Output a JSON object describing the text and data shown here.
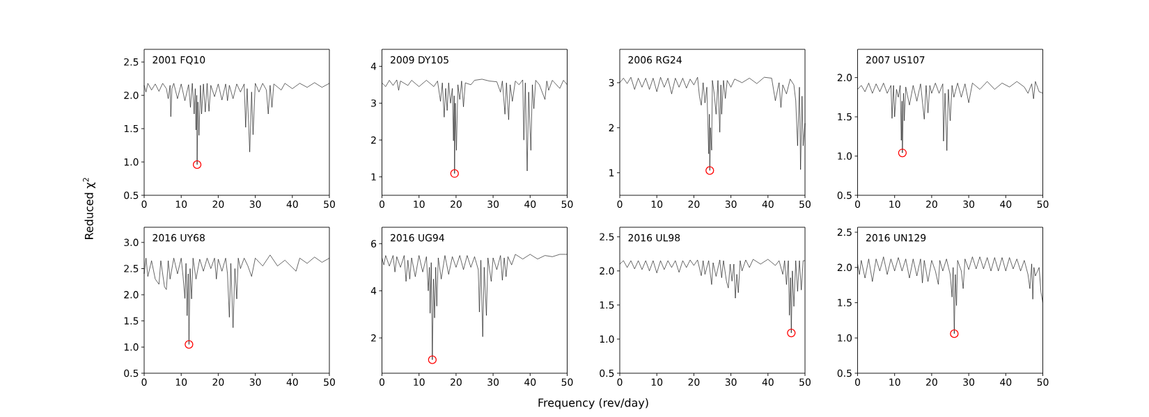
{
  "chart_data": [
    {
      "type": "line",
      "title": "2001 FQ10",
      "ylabel": "Reduced χ$^{2}$",
      "xlim": [
        0,
        50
      ],
      "xticks": [
        0,
        10,
        20,
        30,
        40,
        50
      ],
      "ylim": [
        0.5,
        2.69
      ],
      "yticks": [
        {
          "value": 0.5,
          "label": "0.5"
        },
        {
          "value": 1,
          "label": "1.0"
        },
        {
          "value": 1.5,
          "label": "1.5"
        },
        {
          "value": 2,
          "label": "2.0"
        },
        {
          "value": 2.5,
          "label": "2.5"
        }
      ],
      "series": [
        {
          "type": "line",
          "color": "#000000",
          "x": [
            0,
            0.5,
            1,
            2,
            3,
            4,
            5,
            6,
            6.5,
            7,
            7.2,
            7.5,
            8,
            9,
            10,
            11,
            12,
            12.5,
            13,
            13.5,
            13.8,
            14,
            14.2,
            14.3,
            14.5,
            14.8,
            15.2,
            15.5,
            16,
            16.5,
            17,
            17.5,
            18,
            19,
            20,
            21,
            22,
            22.5,
            23,
            24,
            25,
            26,
            27,
            27.4,
            27.8,
            28.5,
            29,
            29.4,
            30,
            31,
            32,
            33,
            33.5,
            34,
            34.5,
            35,
            37,
            38,
            40,
            42,
            44,
            46,
            48,
            50
          ],
          "values": [
            2.15,
            2.05,
            2.18,
            2.08,
            2.17,
            2.06,
            2.18,
            2.1,
            1.95,
            2.15,
            1.68,
            2.1,
            2.18,
            1.95,
            2.17,
            1.92,
            2.16,
            1.82,
            2.18,
            1.72,
            2.1,
            1.48,
            2.0,
            0.96,
            1.9,
            1.4,
            2.15,
            1.72,
            2.17,
            1.75,
            2.18,
            1.76,
            2.15,
            1.98,
            2.17,
            1.93,
            2.17,
            1.92,
            2.15,
            1.95,
            2.17,
            2.05,
            2.17,
            1.52,
            2.1,
            1.15,
            2.05,
            1.41,
            2.18,
            2.05,
            2.18,
            2.08,
            1.72,
            2.15,
            1.82,
            2.17,
            2.08,
            2.18,
            2.1,
            2.18,
            2.12,
            2.19,
            2.12,
            2.18
          ]
        },
        {
          "type": "scatter",
          "color": "#ff0000",
          "marker": "circle",
          "x": [
            14.3
          ],
          "values": [
            0.96
          ]
        }
      ]
    },
    {
      "type": "line",
      "title": "2009 DY105",
      "xlim": [
        0,
        50
      ],
      "xticks": [
        0,
        10,
        20,
        30,
        40,
        50
      ],
      "ylim": [
        0.5,
        4.46
      ],
      "yticks": [
        1,
        2,
        3,
        4
      ],
      "series": [
        {
          "type": "line",
          "color": "#000000",
          "x": [
            0,
            1,
            2,
            3,
            4,
            4.5,
            5,
            7,
            8,
            10,
            12,
            14,
            15,
            15.8,
            16.3,
            16.8,
            17.2,
            17.6,
            18,
            18.5,
            19,
            19.3,
            19.5,
            19.6,
            19.8,
            20.1,
            20.5,
            21,
            21.5,
            22,
            22.5,
            24,
            25,
            27,
            29,
            31,
            32,
            32.5,
            33.2,
            33.6,
            34.2,
            34.6,
            35.2,
            36,
            37,
            38,
            38.3,
            38.7,
            39.2,
            39.6,
            40.2,
            40.6,
            41,
            41.5,
            42.5,
            44,
            44.5,
            45,
            46,
            48,
            49,
            50
          ],
          "values": [
            3.55,
            3.45,
            3.62,
            3.48,
            3.63,
            3.35,
            3.6,
            3.48,
            3.62,
            3.45,
            3.62,
            3.45,
            3.6,
            3.05,
            3.55,
            2.62,
            3.4,
            2.8,
            3.55,
            3.0,
            3.4,
            1.98,
            3.2,
            1.09,
            3.0,
            1.72,
            3.5,
            3.1,
            3.6,
            2.9,
            3.55,
            3.5,
            3.62,
            3.65,
            3.6,
            3.58,
            3.3,
            3.6,
            2.7,
            3.55,
            2.55,
            3.5,
            3.05,
            3.6,
            3.5,
            3.63,
            2.0,
            3.55,
            1.16,
            3.3,
            1.72,
            3.5,
            2.85,
            3.62,
            3.5,
            3.1,
            3.6,
            3.35,
            3.62,
            3.4,
            3.62,
            3.5
          ]
        },
        {
          "type": "scatter",
          "color": "#ff0000",
          "marker": "circle",
          "x": [
            19.6
          ],
          "values": [
            1.09
          ]
        }
      ]
    },
    {
      "type": "line",
      "title": "2006 RG24",
      "xlim": [
        0,
        50
      ],
      "xticks": [
        0,
        10,
        20,
        30,
        40,
        50
      ],
      "ylim": [
        0.5,
        3.74
      ],
      "yticks": [
        1,
        2,
        3
      ],
      "series": [
        {
          "type": "line",
          "color": "#000000",
          "x": [
            0,
            1,
            2,
            3,
            4,
            5,
            6,
            7,
            8,
            9,
            10,
            11,
            12,
            13,
            14,
            15,
            16,
            17,
            18,
            19,
            20,
            21,
            21.5,
            22,
            22.5,
            23,
            23.5,
            24,
            24.2,
            24.3,
            24.5,
            24.8,
            25,
            25.5,
            26,
            26.5,
            27,
            27.3,
            27.5,
            28,
            28.5,
            29,
            30,
            31,
            33,
            35,
            37,
            39,
            41,
            42,
            43,
            43.5,
            44,
            45,
            46,
            47,
            47.5,
            48,
            48.5,
            48.8,
            49.2,
            49.5,
            50
          ],
          "values": [
            3.0,
            3.1,
            2.98,
            3.12,
            2.85,
            3.1,
            2.9,
            3.1,
            2.85,
            3.1,
            2.8,
            3.12,
            2.9,
            3.1,
            2.75,
            3.1,
            2.9,
            3.1,
            2.88,
            3.08,
            2.95,
            3.12,
            2.7,
            2.5,
            3.0,
            2.55,
            2.9,
            1.42,
            2.3,
            1.05,
            2.0,
            1.5,
            3.05,
            2.75,
            2.3,
            3.05,
            1.9,
            2.95,
            2.3,
            3.05,
            2.65,
            3.05,
            2.9,
            3.08,
            3.0,
            3.1,
            2.98,
            3.12,
            3.1,
            2.6,
            3.0,
            2.45,
            2.95,
            2.75,
            3.08,
            2.95,
            2.6,
            1.6,
            2.9,
            1.07,
            2.7,
            1.6,
            2.1
          ]
        },
        {
          "type": "scatter",
          "color": "#ff0000",
          "marker": "circle",
          "x": [
            24.3
          ],
          "values": [
            1.05
          ]
        }
      ]
    },
    {
      "type": "line",
      "title": "2007 US107",
      "xlim": [
        0,
        50
      ],
      "xticks": [
        0,
        10,
        20,
        30,
        40,
        50
      ],
      "ylim": [
        0.5,
        2.36
      ],
      "yticks": [
        {
          "value": 0.5,
          "label": "0.5"
        },
        {
          "value": 1,
          "label": "1.0"
        },
        {
          "value": 1.5,
          "label": "1.5"
        },
        {
          "value": 2,
          "label": "2.0"
        }
      ],
      "series": [
        {
          "type": "line",
          "color": "#000000",
          "x": [
            0,
            1,
            2,
            3,
            4,
            5,
            6,
            7,
            8,
            9,
            9.3,
            9.7,
            10,
            10.5,
            11,
            11.5,
            11.8,
            12,
            12.1,
            12.4,
            12.6,
            13,
            14,
            15,
            16,
            17,
            18,
            18.5,
            19,
            19.5,
            20,
            21,
            22,
            23,
            23.2,
            23.6,
            24.1,
            24.5,
            25,
            25.5,
            26,
            27,
            28,
            29,
            30,
            31,
            33,
            35,
            37,
            39,
            41,
            43,
            45,
            46,
            47,
            47.5,
            48,
            49,
            50
          ],
          "values": [
            1.85,
            1.9,
            1.82,
            1.93,
            1.8,
            1.92,
            1.82,
            1.93,
            1.8,
            1.9,
            1.48,
            1.9,
            1.5,
            1.85,
            1.75,
            1.9,
            1.2,
            1.7,
            1.04,
            1.8,
            1.45,
            1.88,
            1.65,
            1.9,
            1.7,
            1.92,
            1.47,
            1.9,
            1.55,
            1.9,
            1.8,
            1.93,
            1.8,
            1.92,
            1.19,
            1.8,
            1.07,
            1.85,
            1.45,
            1.9,
            1.75,
            1.93,
            1.75,
            1.92,
            1.68,
            1.93,
            1.85,
            1.95,
            1.85,
            1.93,
            1.88,
            1.95,
            1.88,
            1.8,
            1.92,
            1.73,
            1.95,
            1.82,
            1.8
          ]
        },
        {
          "type": "scatter",
          "color": "#ff0000",
          "marker": "circle",
          "x": [
            12.1
          ],
          "values": [
            1.04
          ]
        }
      ]
    },
    {
      "type": "line",
      "title": "2016 UY68",
      "xlim": [
        0,
        50
      ],
      "xticks": [
        0,
        10,
        20,
        30,
        40,
        50
      ],
      "ylim": [
        0.5,
        3.29
      ],
      "yticks": [
        {
          "value": 0.5,
          "label": "0.5"
        },
        {
          "value": 1,
          "label": "1.0"
        },
        {
          "value": 1.5,
          "label": "1.5"
        },
        {
          "value": 2,
          "label": "2.0"
        },
        {
          "value": 2.5,
          "label": "2.5"
        },
        {
          "value": 3,
          "label": "3.0"
        }
      ],
      "series": [
        {
          "type": "line",
          "color": "#000000",
          "x": [
            0,
            0.5,
            1,
            2,
            3,
            4,
            4.5,
            5,
            5.5,
            6,
            6.5,
            7,
            8,
            9,
            10,
            10.5,
            11,
            11.3,
            11.6,
            11.9,
            12.1,
            12.4,
            12.8,
            13.2,
            14,
            15,
            16,
            17,
            18,
            19,
            19.5,
            20,
            21,
            22,
            22.5,
            23,
            23.4,
            24,
            24.5,
            25,
            25.4,
            26,
            27,
            28,
            29,
            30,
            32,
            34,
            36,
            38,
            40,
            41,
            42,
            44,
            46,
            48,
            50
          ],
          "values": [
            2.4,
            2.7,
            2.35,
            2.65,
            2.3,
            2.2,
            2.65,
            2.4,
            2.15,
            2.1,
            2.65,
            2.3,
            2.7,
            2.4,
            2.7,
            2.35,
            1.93,
            2.6,
            1.6,
            2.4,
            1.05,
            2.5,
            1.92,
            2.7,
            2.3,
            2.68,
            2.45,
            2.7,
            2.5,
            2.7,
            2.3,
            2.68,
            2.45,
            2.7,
            2.4,
            1.57,
            2.6,
            1.37,
            2.5,
            1.92,
            2.7,
            2.5,
            2.7,
            2.55,
            2.35,
            2.7,
            2.55,
            2.76,
            2.55,
            2.66,
            2.52,
            2.45,
            2.7,
            2.6,
            2.72,
            2.62,
            2.7
          ]
        },
        {
          "type": "scatter",
          "color": "#ff0000",
          "marker": "circle",
          "x": [
            12.1
          ],
          "values": [
            1.05
          ]
        }
      ]
    },
    {
      "type": "line",
      "title": "2016 UG94",
      "xlabel": "Frequency (rev/day)",
      "xlim": [
        0,
        50
      ],
      "xticks": [
        0,
        10,
        20,
        30,
        40,
        50
      ],
      "ylim": [
        0.5,
        6.7
      ],
      "yticks": [
        2,
        4,
        6
      ],
      "series": [
        {
          "type": "line",
          "color": "#000000",
          "x": [
            0,
            0.5,
            1,
            2,
            3,
            3.5,
            4,
            5,
            6,
            6.5,
            7,
            7.5,
            8,
            9,
            10,
            11,
            12,
            12.5,
            12.8,
            13,
            13.3,
            13.6,
            13.9,
            14.2,
            14.5,
            14.8,
            15.2,
            16,
            17,
            18,
            19,
            20,
            21,
            22,
            23,
            24,
            25,
            26,
            26.3,
            26.7,
            27.2,
            27.6,
            28.2,
            28.6,
            29.5,
            30,
            31,
            32,
            32.5,
            33,
            33.5,
            34,
            35,
            36,
            38,
            40,
            42,
            44,
            46,
            48,
            50
          ],
          "values": [
            5.4,
            5.1,
            5.5,
            5.05,
            5.5,
            4.8,
            5.45,
            5.0,
            5.5,
            4.4,
            5.3,
            4.5,
            5.4,
            4.6,
            5.5,
            4.8,
            5.45,
            4.0,
            5.0,
            3.05,
            5.2,
            1.07,
            4.5,
            2.85,
            5.0,
            3.35,
            5.4,
            4.5,
            5.5,
            4.7,
            5.45,
            5.0,
            5.5,
            4.9,
            5.5,
            5.0,
            5.45,
            4.9,
            3.1,
            5.3,
            2.05,
            5.0,
            2.95,
            5.4,
            4.4,
            5.4,
            4.9,
            5.5,
            4.45,
            5.4,
            4.6,
            5.45,
            5.1,
            5.55,
            5.35,
            5.55,
            5.35,
            5.5,
            5.45,
            5.55,
            5.55
          ]
        },
        {
          "type": "scatter",
          "color": "#ff0000",
          "marker": "circle",
          "x": [
            13.6
          ],
          "values": [
            1.07
          ]
        }
      ]
    },
    {
      "type": "line",
      "title": "2016 UL98",
      "xlim": [
        0,
        50
      ],
      "xticks": [
        0,
        10,
        20,
        30,
        40,
        50
      ],
      "ylim": [
        0.5,
        2.64
      ],
      "yticks": [
        {
          "value": 0.5,
          "label": "0.5"
        },
        {
          "value": 1,
          "label": "1.0"
        },
        {
          "value": 1.5,
          "label": "1.5"
        },
        {
          "value": 2,
          "label": "2.0"
        },
        {
          "value": 2.5,
          "label": "2.5"
        }
      ],
      "series": [
        {
          "type": "line",
          "color": "#000000",
          "x": [
            0,
            1,
            2,
            3,
            4,
            5,
            6,
            7,
            8,
            9,
            10,
            11,
            12,
            13,
            14,
            15,
            16,
            17,
            18,
            19,
            20,
            21,
            22,
            22.5,
            23,
            24,
            24.8,
            25.2,
            26,
            27,
            27.5,
            28,
            28.8,
            29.3,
            29.8,
            30.3,
            30.8,
            31.2,
            31.6,
            32,
            32.5,
            33,
            34,
            35,
            36,
            38,
            40,
            42,
            43,
            44,
            44.5,
            45,
            45.5,
            45.8,
            46.1,
            46.3,
            46.6,
            47,
            47.5,
            48,
            48.5,
            49,
            49.5,
            50
          ],
          "values": [
            2.1,
            2.15,
            2.05,
            2.15,
            2.03,
            2.15,
            2.02,
            2.15,
            2.0,
            2.15,
            1.97,
            2.15,
            2.02,
            2.15,
            2.05,
            2.15,
            1.98,
            2.15,
            2.05,
            2.16,
            2.08,
            2.16,
            1.93,
            2.15,
            1.95,
            2.15,
            1.8,
            2.12,
            1.92,
            2.16,
            1.9,
            2.15,
            1.85,
            1.75,
            2.1,
            1.85,
            2.1,
            1.6,
            1.95,
            1.68,
            2.15,
            2.0,
            2.16,
            2.05,
            2.17,
            2.1,
            2.17,
            2.08,
            2.15,
            1.95,
            2.15,
            1.8,
            2.15,
            1.35,
            1.9,
            1.09,
            2.0,
            1.48,
            2.15,
            1.7,
            2.15,
            1.72,
            2.15,
            2.15
          ]
        },
        {
          "type": "scatter",
          "color": "#ff0000",
          "marker": "circle",
          "x": [
            46.3
          ],
          "values": [
            1.09
          ]
        }
      ]
    },
    {
      "type": "line",
      "title": "2016 UN129",
      "xlim": [
        0,
        50
      ],
      "xticks": [
        0,
        10,
        20,
        30,
        40,
        50
      ],
      "ylim": [
        0.5,
        2.57
      ],
      "yticks": [
        {
          "value": 0.5,
          "label": "0.5"
        },
        {
          "value": 1,
          "label": "1.0"
        },
        {
          "value": 1.5,
          "label": "1.5"
        },
        {
          "value": 2,
          "label": "2.0"
        },
        {
          "value": 2.5,
          "label": "2.5"
        }
      ],
      "series": [
        {
          "type": "line",
          "color": "#000000",
          "x": [
            0,
            0.5,
            1,
            2,
            3,
            4,
            5,
            6,
            7,
            8,
            9,
            10,
            11,
            12,
            13,
            14,
            15,
            16,
            17,
            17.5,
            18,
            19,
            20,
            21,
            21.8,
            22.2,
            23,
            24,
            25,
            25.5,
            25.8,
            26.1,
            26.4,
            26.7,
            27,
            28,
            28.5,
            29,
            30,
            31,
            32,
            33,
            34,
            35,
            36,
            37,
            38,
            39,
            40,
            41,
            42,
            43,
            44,
            45,
            46,
            46.5,
            47,
            47.3,
            47.6,
            48,
            49,
            49.5,
            50
          ],
          "values": [
            2.05,
            1.9,
            2.1,
            1.85,
            2.12,
            1.8,
            2.12,
            1.95,
            2.15,
            1.9,
            2.12,
            1.95,
            2.14,
            1.95,
            2.12,
            1.85,
            2.12,
            1.88,
            2.12,
            1.78,
            2.1,
            1.8,
            2.1,
            1.95,
            1.76,
            2.1,
            1.95,
            2.12,
            1.9,
            1.58,
            2.0,
            1.06,
            1.9,
            1.46,
            2.1,
            1.95,
            1.7,
            2.12,
            1.97,
            2.15,
            1.98,
            2.15,
            1.98,
            2.14,
            1.95,
            2.14,
            1.95,
            2.14,
            1.95,
            2.14,
            1.98,
            2.12,
            1.95,
            2.1,
            1.9,
            1.7,
            2.05,
            1.55,
            2.0,
            1.88,
            2.0,
            1.65,
            1.5
          ]
        },
        {
          "type": "scatter",
          "color": "#ff0000",
          "marker": "circle",
          "x": [
            26.1
          ],
          "values": [
            1.06
          ]
        }
      ]
    }
  ]
}
